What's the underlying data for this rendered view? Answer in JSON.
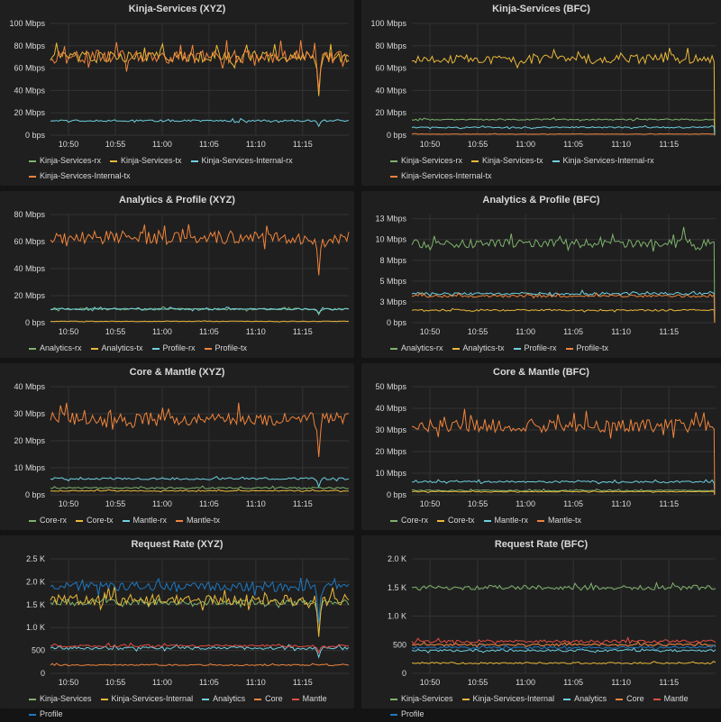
{
  "time_ticks": [
    "10:50",
    "10:55",
    "11:00",
    "11:05",
    "11:10",
    "11:15"
  ],
  "colors": {
    "green": "#7eb26d",
    "yellow": "#eab839",
    "cyan": "#6ed0e0",
    "orange": "#ef843c",
    "red": "#e24d42",
    "blue": "#1f78c1"
  },
  "chart_data": [
    {
      "title": "Kinja-Services (XYZ)",
      "type": "line",
      "ylim": [
        0,
        100
      ],
      "y_ticks": [
        "0 bps",
        "20 Mbps",
        "40 Mbps",
        "60 Mbps",
        "80 Mbps",
        "100 Mbps"
      ],
      "series": [
        {
          "name": "Kinja-Services-rx",
          "color": "green",
          "level": 0,
          "noise": 0,
          "spike": 0,
          "visible": false
        },
        {
          "name": "Kinja-Services-tx",
          "color": "yellow",
          "level": 70,
          "noise": 5,
          "spike": -35
        },
        {
          "name": "Kinja-Services-Internal-rx",
          "color": "cyan",
          "level": 13,
          "noise": 0.8,
          "spike": -5
        },
        {
          "name": "Kinja-Services-Internal-tx",
          "color": "orange",
          "level": 70,
          "noise": 6,
          "spike": -30
        }
      ]
    },
    {
      "title": "Kinja-Services (BFC)",
      "type": "line",
      "ylim": [
        0,
        100
      ],
      "drop_at_end": true,
      "y_ticks": [
        "0 bps",
        "20 Mbps",
        "40 Mbps",
        "60 Mbps",
        "80 Mbps",
        "100 Mbps"
      ],
      "series": [
        {
          "name": "Kinja-Services-rx",
          "color": "green",
          "level": 14,
          "noise": 0.6,
          "spike": 0
        },
        {
          "name": "Kinja-Services-tx",
          "color": "yellow",
          "level": 68,
          "noise": 4,
          "spike": 0
        },
        {
          "name": "Kinja-Services-Internal-rx",
          "color": "cyan",
          "level": 7,
          "noise": 0.6,
          "spike": 0
        },
        {
          "name": "Kinja-Services-Internal-tx",
          "color": "orange",
          "level": 1,
          "noise": 0.2,
          "spike": 0
        }
      ]
    },
    {
      "title": "Analytics & Profile (XYZ)",
      "type": "line",
      "ylim": [
        0,
        80
      ],
      "y_ticks": [
        "0 bps",
        "20 Mbps",
        "40 Mbps",
        "60 Mbps",
        "80 Mbps"
      ],
      "series": [
        {
          "name": "Analytics-rx",
          "color": "green",
          "level": 10,
          "noise": 0.7,
          "spike": -4
        },
        {
          "name": "Analytics-tx",
          "color": "yellow",
          "level": 1,
          "noise": 0.2,
          "spike": 0
        },
        {
          "name": "Profile-rx",
          "color": "cyan",
          "level": 10,
          "noise": 0.6,
          "spike": -3
        },
        {
          "name": "Profile-tx",
          "color": "orange",
          "level": 63,
          "noise": 5,
          "spike": -28
        }
      ]
    },
    {
      "title": "Analytics & Profile (BFC)",
      "type": "line",
      "ylim": [
        0,
        13
      ],
      "drop_at_end": true,
      "y_ticks": [
        "0 bps",
        "3 Mbps",
        "5 Mbps",
        "8 Mbps",
        "10 Mbps",
        "13 Mbps"
      ],
      "y_tick_values": [
        0,
        2.5,
        5,
        7.5,
        10,
        12.5
      ],
      "series": [
        {
          "name": "Analytics-rx",
          "color": "green",
          "level": 9.5,
          "noise": 0.5,
          "spike": 2
        },
        {
          "name": "Analytics-tx",
          "color": "yellow",
          "level": 1.5,
          "noise": 0.1,
          "spike": 0
        },
        {
          "name": "Profile-rx",
          "color": "cyan",
          "level": 3.5,
          "noise": 0.15,
          "spike": 0
        },
        {
          "name": "Profile-tx",
          "color": "orange",
          "level": 3.2,
          "noise": 0.15,
          "spike": 0
        }
      ]
    },
    {
      "title": "Core & Mantle (XYZ)",
      "type": "line",
      "ylim": [
        0,
        40
      ],
      "y_ticks": [
        "0 bps",
        "10 Mbps",
        "20 Mbps",
        "30 Mbps",
        "40 Mbps"
      ],
      "series": [
        {
          "name": "Core-rx",
          "color": "green",
          "level": 2.5,
          "noise": 0.3,
          "spike": 0
        },
        {
          "name": "Core-tx",
          "color": "yellow",
          "level": 1.5,
          "noise": 0.2,
          "spike": 0
        },
        {
          "name": "Mantle-rx",
          "color": "cyan",
          "level": 6,
          "noise": 0.4,
          "spike": -3
        },
        {
          "name": "Mantle-tx",
          "color": "orange",
          "level": 28,
          "noise": 2.5,
          "spike": -14
        }
      ]
    },
    {
      "title": "Core & Mantle (BFC)",
      "type": "line",
      "ylim": [
        0,
        50
      ],
      "drop_at_end": true,
      "y_ticks": [
        "0 bps",
        "10 Mbps",
        "20 Mbps",
        "30 Mbps",
        "40 Mbps",
        "50 Mbps"
      ],
      "series": [
        {
          "name": "Core-rx",
          "color": "green",
          "level": 2,
          "noise": 0.3,
          "spike": 0
        },
        {
          "name": "Core-tx",
          "color": "yellow",
          "level": 1.5,
          "noise": 0.2,
          "spike": 0
        },
        {
          "name": "Mantle-rx",
          "color": "cyan",
          "level": 6,
          "noise": 0.4,
          "spike": 0
        },
        {
          "name": "Mantle-tx",
          "color": "orange",
          "level": 32,
          "noise": 3,
          "spike": 0
        }
      ]
    },
    {
      "title": "Request Rate (XYZ)",
      "type": "line",
      "ylim": [
        0,
        2500
      ],
      "y_ticks": [
        "0",
        "500",
        "1.0 K",
        "1.5 K",
        "2.0 K",
        "2.5 K"
      ],
      "series": [
        {
          "name": "Kinja-Services",
          "color": "green",
          "level": 1550,
          "noise": 60,
          "spike": -700
        },
        {
          "name": "Kinja-Services-Internal",
          "color": "yellow",
          "level": 1600,
          "noise": 120,
          "spike": -800
        },
        {
          "name": "Analytics",
          "color": "cyan",
          "level": 550,
          "noise": 30,
          "spike": -200
        },
        {
          "name": "Core",
          "color": "orange",
          "level": 180,
          "noise": 15,
          "spike": 0
        },
        {
          "name": "Mantle",
          "color": "red",
          "level": 600,
          "noise": 25,
          "spike": -150
        },
        {
          "name": "Profile",
          "color": "blue",
          "level": 1900,
          "noise": 100,
          "spike": -800
        }
      ]
    },
    {
      "title": "Request Rate (BFC)",
      "type": "line",
      "ylim": [
        0,
        2000
      ],
      "y_ticks": [
        "0",
        "500",
        "1.0 K",
        "1.5 K",
        "2.0 K"
      ],
      "series": [
        {
          "name": "Kinja-Services",
          "color": "green",
          "level": 1500,
          "noise": 40,
          "spike": 0
        },
        {
          "name": "Kinja-Services-Internal",
          "color": "yellow",
          "level": 180,
          "noise": 15,
          "spike": 0
        },
        {
          "name": "Analytics",
          "color": "cyan",
          "level": 400,
          "noise": 20,
          "spike": 0
        },
        {
          "name": "Core",
          "color": "orange",
          "level": 500,
          "noise": 20,
          "spike": 0
        },
        {
          "name": "Mantle",
          "color": "red",
          "level": 560,
          "noise": 25,
          "spike": 0
        },
        {
          "name": "Profile",
          "color": "blue",
          "level": 450,
          "noise": 20,
          "spike": 0
        }
      ]
    }
  ]
}
